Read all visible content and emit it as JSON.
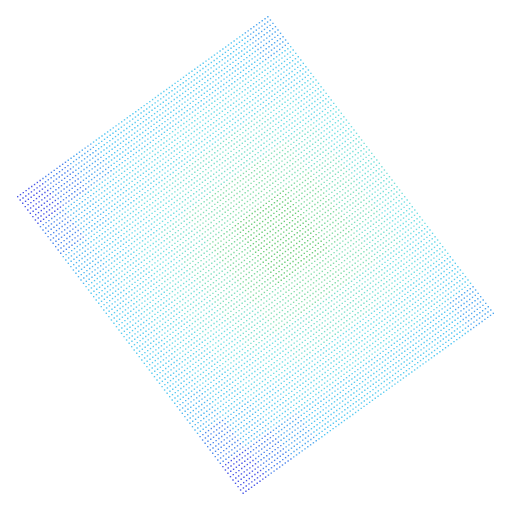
{
  "chart_data": {
    "type": "scatter",
    "tick_labels": false,
    "grid": false,
    "xlim": [
      0,
      512
    ],
    "ylim": [
      0,
      512
    ],
    "corners": {
      "left": [
        15,
        316
      ],
      "top": [
        268,
        498
      ],
      "bottom": [
        243,
        16
      ]
    },
    "value_range": [
      0,
      1
    ],
    "values": [
      [
        0.03,
        0.12,
        0.19,
        0.25,
        0.29,
        0.32,
        0.32,
        0.29,
        0.25,
        0.19
      ],
      [
        0.13,
        0.23,
        0.31,
        0.39,
        0.44,
        0.47,
        0.47,
        0.44,
        0.39,
        0.31
      ],
      [
        0.22,
        0.32,
        0.42,
        0.51,
        0.58,
        0.62,
        0.62,
        0.58,
        0.51,
        0.42
      ],
      [
        0.28,
        0.39,
        0.51,
        0.61,
        0.71,
        0.77,
        0.77,
        0.71,
        0.61,
        0.51
      ],
      [
        0.31,
        0.43,
        0.56,
        0.68,
        0.8,
        0.9,
        0.9,
        0.8,
        0.68,
        0.56
      ],
      [
        0.31,
        0.43,
        0.56,
        0.68,
        0.8,
        0.9,
        0.9,
        0.8,
        0.68,
        0.56
      ],
      [
        0.28,
        0.39,
        0.51,
        0.61,
        0.71,
        0.77,
        0.77,
        0.71,
        0.61,
        0.51
      ],
      [
        0.22,
        0.32,
        0.42,
        0.51,
        0.58,
        0.62,
        0.62,
        0.58,
        0.51,
        0.42
      ],
      [
        0.13,
        0.23,
        0.31,
        0.39,
        0.44,
        0.47,
        0.47,
        0.44,
        0.39,
        0.31
      ],
      [
        0.03,
        0.12,
        0.19,
        0.25,
        0.29,
        0.32,
        0.32,
        0.29,
        0.25,
        0.19
      ]
    ]
  }
}
